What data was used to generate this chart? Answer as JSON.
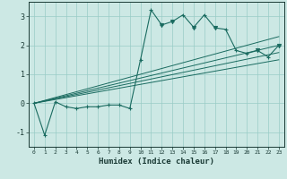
{
  "xlabel": "Humidex (Indice chaleur)",
  "bg_color": "#cce8e4",
  "grid_color": "#99ccc6",
  "line_color": "#1a6b60",
  "xlim": [
    -0.5,
    23.5
  ],
  "ylim": [
    -1.5,
    3.5
  ],
  "yticks": [
    -1,
    0,
    1,
    2,
    3
  ],
  "xticks": [
    0,
    1,
    2,
    3,
    4,
    5,
    6,
    7,
    8,
    9,
    10,
    11,
    12,
    13,
    14,
    15,
    16,
    17,
    18,
    19,
    20,
    21,
    22,
    23
  ],
  "series": [
    [
      0,
      0.0
    ],
    [
      1,
      -1.1
    ],
    [
      2,
      0.05
    ],
    [
      3,
      -0.12
    ],
    [
      4,
      -0.18
    ],
    [
      5,
      -0.12
    ],
    [
      6,
      -0.12
    ],
    [
      7,
      -0.06
    ],
    [
      8,
      -0.06
    ],
    [
      9,
      -0.18
    ],
    [
      10,
      1.5
    ],
    [
      11,
      3.22
    ],
    [
      12,
      2.7
    ],
    [
      13,
      2.82
    ],
    [
      14,
      3.05
    ],
    [
      15,
      2.62
    ],
    [
      16,
      3.05
    ],
    [
      17,
      2.6
    ],
    [
      18,
      2.55
    ],
    [
      19,
      1.82
    ],
    [
      20,
      1.72
    ],
    [
      21,
      1.82
    ],
    [
      22,
      1.6
    ],
    [
      23,
      2.0
    ]
  ],
  "tri_points": [
    12,
    13,
    15,
    17,
    21,
    23
  ],
  "linear_lines": [
    {
      "x": [
        0,
        23
      ],
      "y": [
        0.0,
        2.3
      ]
    },
    {
      "x": [
        0,
        23
      ],
      "y": [
        0.0,
        2.0
      ]
    },
    {
      "x": [
        0,
        23
      ],
      "y": [
        0.0,
        1.75
      ]
    },
    {
      "x": [
        0,
        23
      ],
      "y": [
        0.0,
        1.5
      ]
    }
  ]
}
